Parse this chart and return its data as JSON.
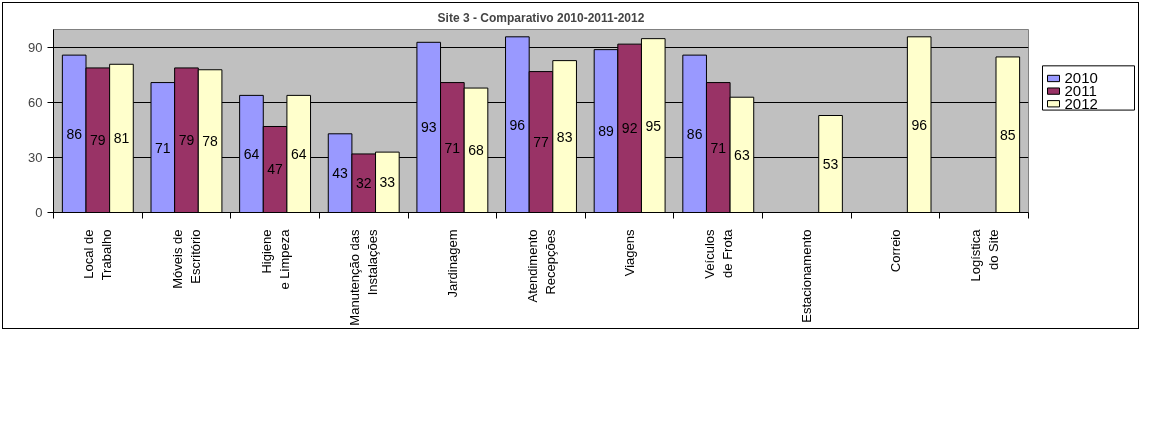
{
  "chart_data": {
    "type": "bar",
    "title": "Site 3 - Comparativo 2010-2011-2012",
    "categories": [
      "Local de Trabalho",
      "Móveis de Escritório",
      "Higiene e Limpeza",
      "Manutenção das Instalações",
      "Jardinagem",
      "Atendimento Recepções",
      "Viagens",
      "Veículos de Frota",
      "Estacionamento",
      "Correio",
      "Logística do Site"
    ],
    "series": [
      {
        "name": "2010",
        "color": "#9999ff",
        "values": [
          86,
          71,
          64,
          43,
          93,
          96,
          89,
          86,
          null,
          null,
          null
        ]
      },
      {
        "name": "2011",
        "color": "#993366",
        "values": [
          79,
          79,
          47,
          32,
          71,
          77,
          92,
          71,
          null,
          null,
          null
        ]
      },
      {
        "name": "2012",
        "color": "#ffffcc",
        "values": [
          81,
          78,
          64,
          33,
          68,
          83,
          95,
          63,
          53,
          96,
          85
        ]
      }
    ],
    "ylim": [
      0,
      100
    ],
    "yticks": [
      0,
      30,
      60,
      90
    ],
    "grid": "y",
    "legend": "right",
    "data_labels": true
  }
}
